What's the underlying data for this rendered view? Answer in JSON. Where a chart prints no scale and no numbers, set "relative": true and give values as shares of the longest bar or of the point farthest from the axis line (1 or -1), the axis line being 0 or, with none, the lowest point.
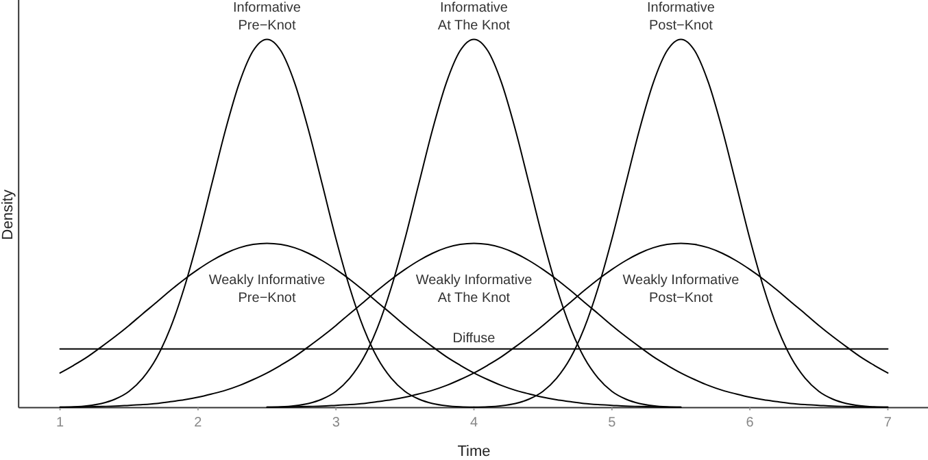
{
  "chart_data": {
    "type": "line",
    "xlabel": "Time",
    "ylabel": "Density",
    "relative": true,
    "xlim": [
      0.7,
      7.3
    ],
    "xticks": [
      1,
      2,
      3,
      4,
      5,
      6,
      7
    ],
    "x": [
      1,
      1.1,
      1.2,
      1.3,
      1.4,
      1.5,
      1.6,
      1.7,
      1.8,
      1.9,
      2,
      2.1,
      2.2,
      2.3,
      2.4,
      2.5,
      2.6,
      2.7,
      2.8,
      2.9,
      3,
      3.1,
      3.2,
      3.3,
      3.4,
      3.5,
      3.6,
      3.7,
      3.8,
      3.9,
      4,
      4.1,
      4.2,
      4.3,
      4.4,
      4.5,
      4.6,
      4.7,
      4.8,
      4.9,
      5,
      5.1,
      5.2,
      5.3,
      5.4,
      5.5,
      5.6,
      5.7,
      5.8,
      5.9,
      6,
      6.1,
      6.2,
      6.3,
      6.4,
      6.5,
      6.6,
      6.7,
      6.8,
      6.9,
      7
    ],
    "series": [
      {
        "name": "Informative\nPre−Knot",
        "color": "#000000",
        "values": [
          0.001,
          0.002,
          0.005,
          0.011,
          0.023,
          0.044,
          0.08,
          0.135,
          0.216,
          0.325,
          0.458,
          0.607,
          0.755,
          0.882,
          0.969,
          1,
          0.969,
          0.882,
          0.755,
          0.607,
          0.458,
          0.325,
          0.216,
          0.135,
          0.08,
          0.044,
          0.023,
          0.011,
          0.005,
          0.002,
          0.001,
          null,
          null,
          null,
          null,
          null,
          null,
          null,
          null,
          null,
          null,
          null,
          null,
          null,
          null,
          null,
          null,
          null,
          null,
          null,
          null,
          null,
          null,
          null,
          null,
          null,
          null,
          null,
          null,
          null,
          null
        ]
      },
      {
        "name": "Informative\nAt The Knot",
        "color": "#000000",
        "values": [
          null,
          null,
          null,
          null,
          null,
          null,
          null,
          null,
          null,
          null,
          null,
          null,
          null,
          null,
          null,
          0.001,
          0.002,
          0.005,
          0.011,
          0.023,
          0.044,
          0.08,
          0.135,
          0.216,
          0.325,
          0.458,
          0.607,
          0.755,
          0.882,
          0.969,
          1,
          0.969,
          0.882,
          0.755,
          0.607,
          0.458,
          0.325,
          0.216,
          0.135,
          0.08,
          0.044,
          0.023,
          0.011,
          0.005,
          0.002,
          0.001,
          null,
          null,
          null,
          null,
          null,
          null,
          null,
          null,
          null,
          null,
          null,
          null,
          null,
          null,
          null
        ]
      },
      {
        "name": "Informative\nPost−Knot",
        "color": "#000000",
        "values": [
          null,
          null,
          null,
          null,
          null,
          null,
          null,
          null,
          null,
          null,
          null,
          null,
          null,
          null,
          null,
          null,
          null,
          null,
          null,
          null,
          null,
          null,
          null,
          null,
          null,
          null,
          null,
          null,
          null,
          null,
          0.001,
          0.002,
          0.005,
          0.011,
          0.023,
          0.044,
          0.08,
          0.135,
          0.216,
          0.325,
          0.458,
          0.607,
          0.755,
          0.882,
          0.969,
          1,
          0.969,
          0.882,
          0.755,
          0.607,
          0.458,
          0.325,
          0.216,
          0.135,
          0.08,
          0.044,
          0.023,
          0.011,
          0.005,
          0.002,
          0.001
        ]
      },
      {
        "name": "Weakly Informative\nPre−Knot",
        "color": "#000000",
        "values": [
          0.094,
          0.115,
          0.138,
          0.165,
          0.193,
          0.223,
          0.255,
          0.286,
          0.318,
          0.348,
          0.375,
          0.399,
          0.419,
          0.434,
          0.443,
          0.446,
          0.443,
          0.434,
          0.419,
          0.399,
          0.375,
          0.348,
          0.318,
          0.286,
          0.255,
          0.223,
          0.193,
          0.165,
          0.138,
          0.115,
          0.094,
          0.076,
          0.06,
          0.047,
          0.037,
          0.028,
          0.021,
          0.016,
          0.011,
          0.008,
          0.006,
          0.004,
          0.003,
          0.002,
          0.001,
          0.001,
          null,
          null,
          null,
          null,
          null,
          null,
          null,
          null,
          null,
          null,
          null,
          null,
          null,
          null,
          null
        ]
      },
      {
        "name": "Weakly Informative\nAt The Knot",
        "color": "#000000",
        "values": [
          0.001,
          0.001,
          0.002,
          0.003,
          0.004,
          0.006,
          0.008,
          0.011,
          0.016,
          0.021,
          0.028,
          0.037,
          0.047,
          0.06,
          0.076,
          0.094,
          0.115,
          0.138,
          0.165,
          0.193,
          0.223,
          0.255,
          0.286,
          0.318,
          0.348,
          0.375,
          0.399,
          0.419,
          0.434,
          0.443,
          0.446,
          0.443,
          0.434,
          0.419,
          0.399,
          0.375,
          0.348,
          0.318,
          0.286,
          0.255,
          0.223,
          0.193,
          0.165,
          0.138,
          0.115,
          0.094,
          0.076,
          0.06,
          0.047,
          0.037,
          0.028,
          0.021,
          0.016,
          0.011,
          0.008,
          0.006,
          0.004,
          0.003,
          0.002,
          0.001,
          0.001
        ]
      },
      {
        "name": "Weakly Informative\nPost−Knot",
        "color": "#000000",
        "values": [
          null,
          null,
          null,
          null,
          null,
          null,
          null,
          null,
          null,
          null,
          null,
          null,
          null,
          null,
          null,
          0.001,
          0.001,
          0.002,
          0.003,
          0.004,
          0.006,
          0.008,
          0.011,
          0.016,
          0.021,
          0.028,
          0.037,
          0.047,
          0.06,
          0.076,
          0.094,
          0.115,
          0.138,
          0.165,
          0.193,
          0.223,
          0.255,
          0.286,
          0.318,
          0.348,
          0.375,
          0.399,
          0.419,
          0.434,
          0.443,
          0.446,
          0.443,
          0.434,
          0.419,
          0.399,
          0.375,
          0.348,
          0.318,
          0.286,
          0.255,
          0.223,
          0.193,
          0.165,
          0.138,
          0.115,
          0.094
        ]
      },
      {
        "name": "Diffuse",
        "color": "#000000",
        "x": [
          1,
          7
        ],
        "values": [
          0.159,
          0.159
        ]
      }
    ]
  }
}
